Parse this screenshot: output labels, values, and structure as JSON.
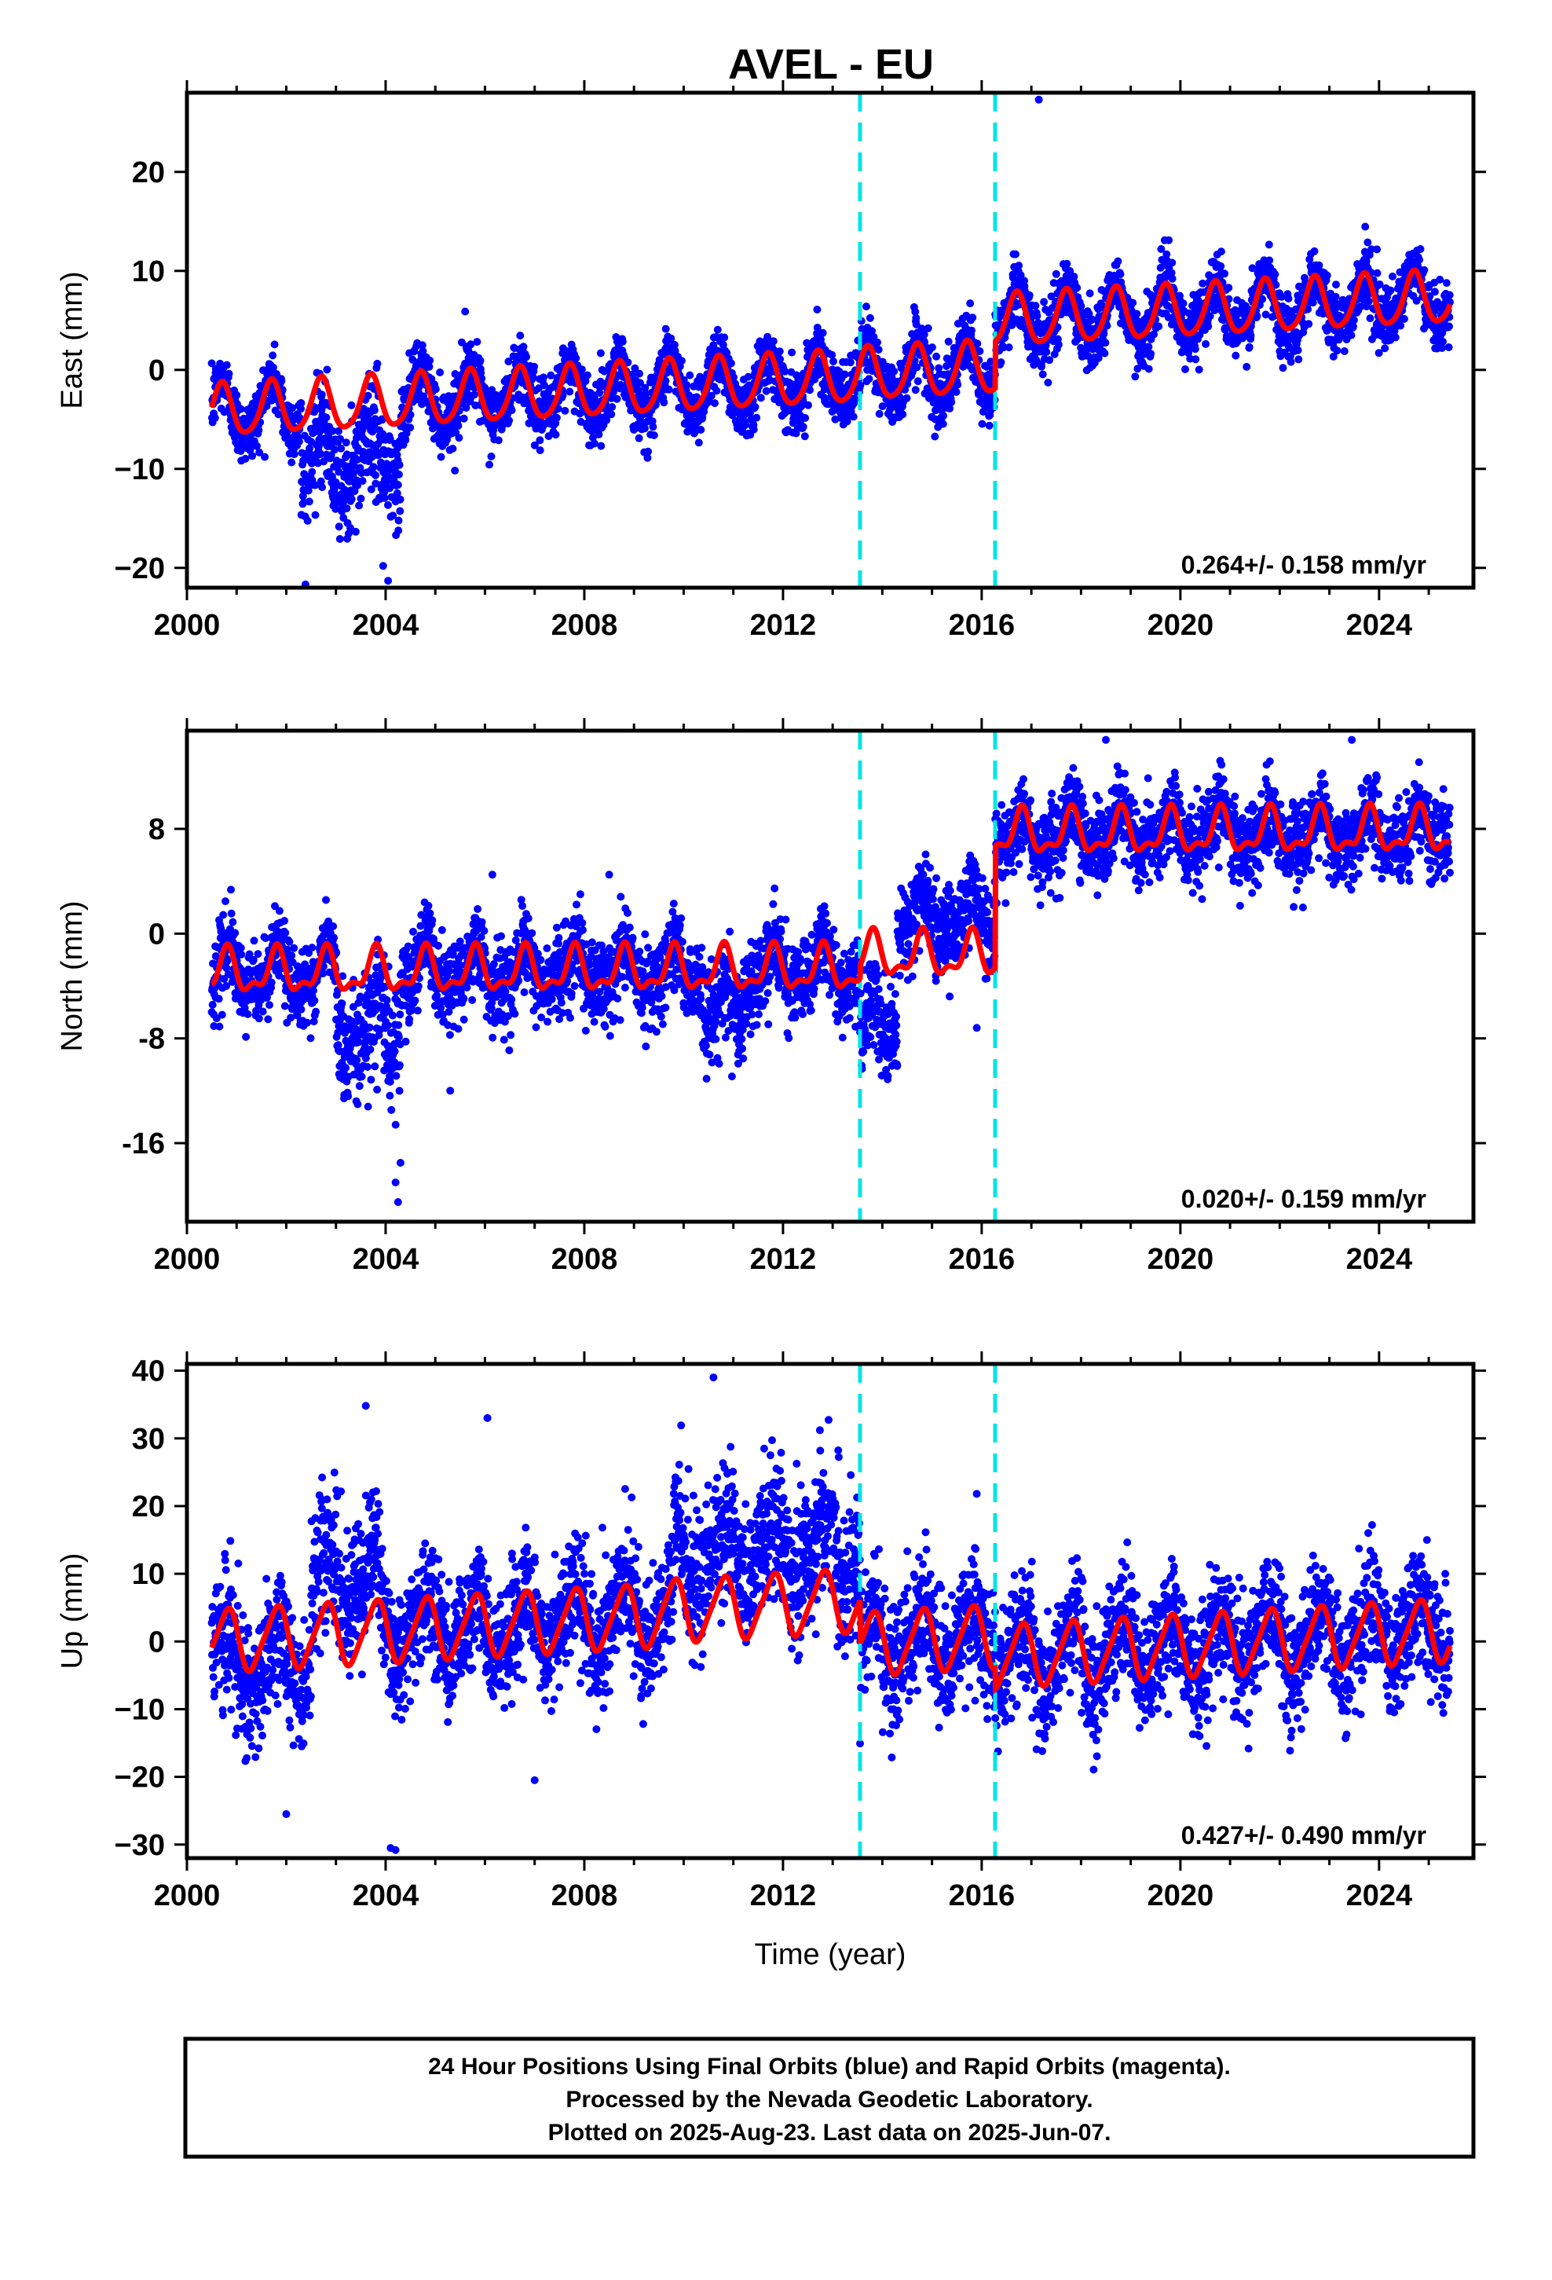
{
  "title": "AVEL - EU",
  "colors": {
    "final_orbits": "#0000ff",
    "model": "#ff0000",
    "steps": "#00e5e5",
    "frame": "#000000"
  },
  "caption": {
    "line1": "24 Hour Positions Using Final Orbits (blue) and Rapid Orbits (magenta).",
    "line2": "Processed by the Nevada Geodetic Laboratory.",
    "line3": "Plotted on 2025-Aug-23. Last data on 2025-Jun-07."
  },
  "chart_data": [
    {
      "type": "scatter",
      "ylabel": "East (mm)",
      "xlim": [
        2000,
        2025.9
      ],
      "ylim": [
        -22,
        28
      ],
      "yticks": [
        -20,
        -10,
        0,
        10,
        20
      ],
      "ytick_labels": [
        "−20",
        "−10",
        "0",
        "10",
        "20"
      ],
      "xticks": [
        2000,
        2004,
        2008,
        2012,
        2016,
        2020,
        2024
      ],
      "xtick_labels": [
        "2000",
        "2004",
        "2008",
        "2012",
        "2016",
        "2020",
        "2024"
      ],
      "rate": "0.264+/- 0.158 mm/yr",
      "steps": [
        2013.55,
        2016.27
      ],
      "data_range": [
        2000.5,
        2025.43
      ],
      "model": {
        "segments": [
          {
            "start": 2000.5,
            "end": 2013.55,
            "offset": -4.2,
            "trend": 0.264,
            "ref": 2000.5,
            "annual_amp": 2.6,
            "annual_phase": 0.45,
            "semi_amp": 0.4,
            "semi_phase": 0.1
          },
          {
            "start": 2013.55,
            "end": 2016.27,
            "offset": -4.0,
            "trend": 0.264,
            "ref": 2000.5,
            "annual_amp": 2.6,
            "annual_phase": 0.45,
            "semi_amp": 0.4,
            "semi_phase": 0.1
          },
          {
            "start": 2016.27,
            "end": 2025.43,
            "offset": 0.7,
            "trend": 0.264,
            "ref": 2000.5,
            "annual_amp": 2.6,
            "annual_phase": 0.45,
            "semi_amp": 0.4,
            "semi_phase": 0.1
          }
        ],
        "noise": 1.6,
        "anomalies": [
          {
            "start": 2002.3,
            "end": 2004.3,
            "shift": -5.5,
            "spread": 3.5
          }
        ],
        "outliers": [
          [
            2017.15,
            27.3
          ],
          [
            2004.05,
            -21.3
          ],
          [
            2003.95,
            -19.8
          ],
          [
            2005.6,
            5.9
          ]
        ]
      }
    },
    {
      "type": "scatter",
      "ylabel": "North (mm)",
      "xlim": [
        2000,
        2025.9
      ],
      "ylim": [
        -22,
        15.5
      ],
      "yticks": [
        -16,
        -8,
        0,
        8
      ],
      "ytick_labels": [
        "-16",
        "-8",
        "0",
        "8"
      ],
      "xticks": [
        2000,
        2004,
        2008,
        2012,
        2016,
        2020,
        2024
      ],
      "xtick_labels": [
        "2000",
        "2004",
        "2008",
        "2012",
        "2016",
        "2020",
        "2024"
      ],
      "rate": "0.020+/- 0.159 mm/yr",
      "steps": [
        2013.55,
        2016.27
      ],
      "data_range": [
        2000.5,
        2025.43
      ],
      "model": {
        "segments": [
          {
            "start": 2000.5,
            "end": 2013.55,
            "offset": -3.0,
            "trend": 0.02,
            "ref": 2000.5,
            "annual_amp": 1.5,
            "annual_phase": 0.55,
            "semi_amp": 0.7,
            "semi_phase": 0.2
          },
          {
            "start": 2013.55,
            "end": 2016.27,
            "offset": -2.0,
            "trend": 0.02,
            "ref": 2000.5,
            "annual_amp": 1.5,
            "annual_phase": 0.55,
            "semi_amp": 0.7,
            "semi_phase": 0.2
          },
          {
            "start": 2016.27,
            "end": 2025.43,
            "offset": 7.3,
            "trend": 0.02,
            "ref": 2000.5,
            "annual_amp": 1.5,
            "annual_phase": 0.55,
            "semi_amp": 0.7,
            "semi_phase": 0.2
          }
        ],
        "noise": 1.5,
        "anomalies": [
          {
            "start": 2003.0,
            "end": 2004.3,
            "shift": -4.5,
            "spread": 3.0
          },
          {
            "start": 2013.55,
            "end": 2014.3,
            "shift": -5.5,
            "spread": 1.5
          },
          {
            "start": 2014.3,
            "end": 2016.27,
            "shift": 3.0,
            "spread": 1.2
          },
          {
            "start": 2010.4,
            "end": 2011.2,
            "shift": -3.0,
            "spread": 2.0
          }
        ],
        "outliers": [
          [
            2004.25,
            -20.5
          ],
          [
            2004.2,
            -19.0
          ],
          [
            2004.3,
            -17.5
          ],
          [
            2005.3,
            -12.0
          ],
          [
            2006.15,
            4.5
          ],
          [
            2008.5,
            4.5
          ],
          [
            2015.9,
            -7.2
          ],
          [
            2023.45,
            14.8
          ],
          [
            2018.5,
            14.8
          ]
        ]
      }
    },
    {
      "type": "scatter",
      "ylabel": "Up (mm)",
      "xlim": [
        2000,
        2025.9
      ],
      "ylim": [
        -32,
        41
      ],
      "yticks": [
        -30,
        -20,
        -10,
        0,
        10,
        20,
        30,
        40
      ],
      "ytick_labels": [
        "−30",
        "−20",
        "−10",
        "0",
        "10",
        "20",
        "30",
        "40"
      ],
      "xticks": [
        2000,
        2004,
        2008,
        2012,
        2016,
        2020,
        2024
      ],
      "xtick_labels": [
        "2000",
        "2004",
        "2008",
        "2012",
        "2016",
        "2020",
        "2024"
      ],
      "xlabel": "Time (year)",
      "rate": "0.427+/- 0.490 mm/yr",
      "steps": [
        2013.55,
        2016.27
      ],
      "data_range": [
        2000.5,
        2025.43
      ],
      "model": {
        "segments": [
          {
            "start": 2000.5,
            "end": 2009.5,
            "offset": 0.0,
            "trend": 0.427,
            "ref": 2000.5,
            "annual_amp": 4.5,
            "annual_phase": 0.55,
            "semi_amp": 0.8,
            "semi_phase": 0.3
          },
          {
            "start": 2009.5,
            "end": 2013.55,
            "offset": 0.5,
            "trend": 0.427,
            "ref": 2000.5,
            "annual_amp": 4.5,
            "annual_phase": 0.55,
            "semi_amp": 0.8,
            "semi_phase": 0.3
          },
          {
            "start": 2013.55,
            "end": 2016.27,
            "offset": -6.0,
            "trend": 0.427,
            "ref": 2000.5,
            "annual_amp": 4.5,
            "annual_phase": 0.55,
            "semi_amp": 0.8,
            "semi_phase": 0.3
          },
          {
            "start": 2016.27,
            "end": 2025.43,
            "offset": -9.0,
            "trend": 0.427,
            "ref": 2000.5,
            "annual_amp": 4.5,
            "annual_phase": 0.55,
            "semi_amp": 0.8,
            "semi_phase": 0.3
          }
        ],
        "noise": 4.5,
        "anomalies": [
          {
            "start": 2002.5,
            "end": 2003.9,
            "shift": 8.0,
            "spread": 5.0
          },
          {
            "start": 2009.8,
            "end": 2013.55,
            "shift": 8.0,
            "spread": 4.0
          },
          {
            "start": 2000.7,
            "end": 2002.5,
            "shift": -4.0,
            "spread": 3.0
          }
        ],
        "outliers": [
          [
            2010.6,
            39.0
          ],
          [
            2003.6,
            34.8
          ],
          [
            2006.05,
            33.0
          ],
          [
            2004.1,
            -30.5
          ],
          [
            2004.2,
            -30.8
          ],
          [
            2002.0,
            -25.5
          ],
          [
            2015.9,
            21.8
          ],
          [
            2007.0,
            -20.5
          ]
        ]
      }
    }
  ]
}
